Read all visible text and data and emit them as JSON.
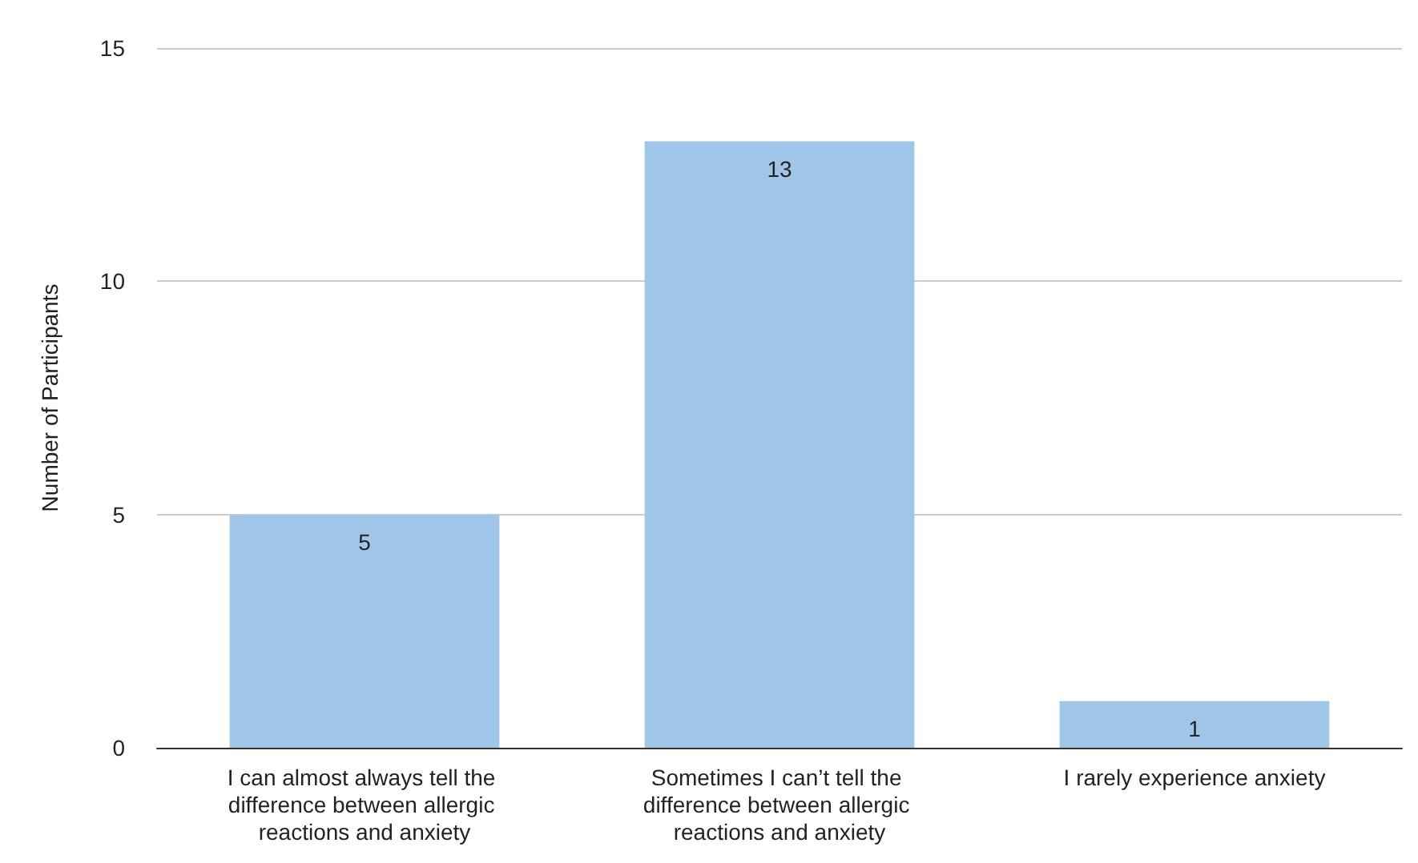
{
  "chart_data": {
    "type": "bar",
    "ylabel": "Number of Participants",
    "categories": [
      "I can almost always tell the difference between allergic reactions and anxiety",
      "Sometimes I can’t tell the difference between allergic reactions and anxiety",
      "I rarely experience anxiety"
    ],
    "values": [
      5,
      13,
      1
    ],
    "color": "#9fc5e8",
    "ylim": [
      0,
      15
    ],
    "yticks": [
      0,
      5,
      10,
      15
    ],
    "grid": "y",
    "data_labels": true
  }
}
